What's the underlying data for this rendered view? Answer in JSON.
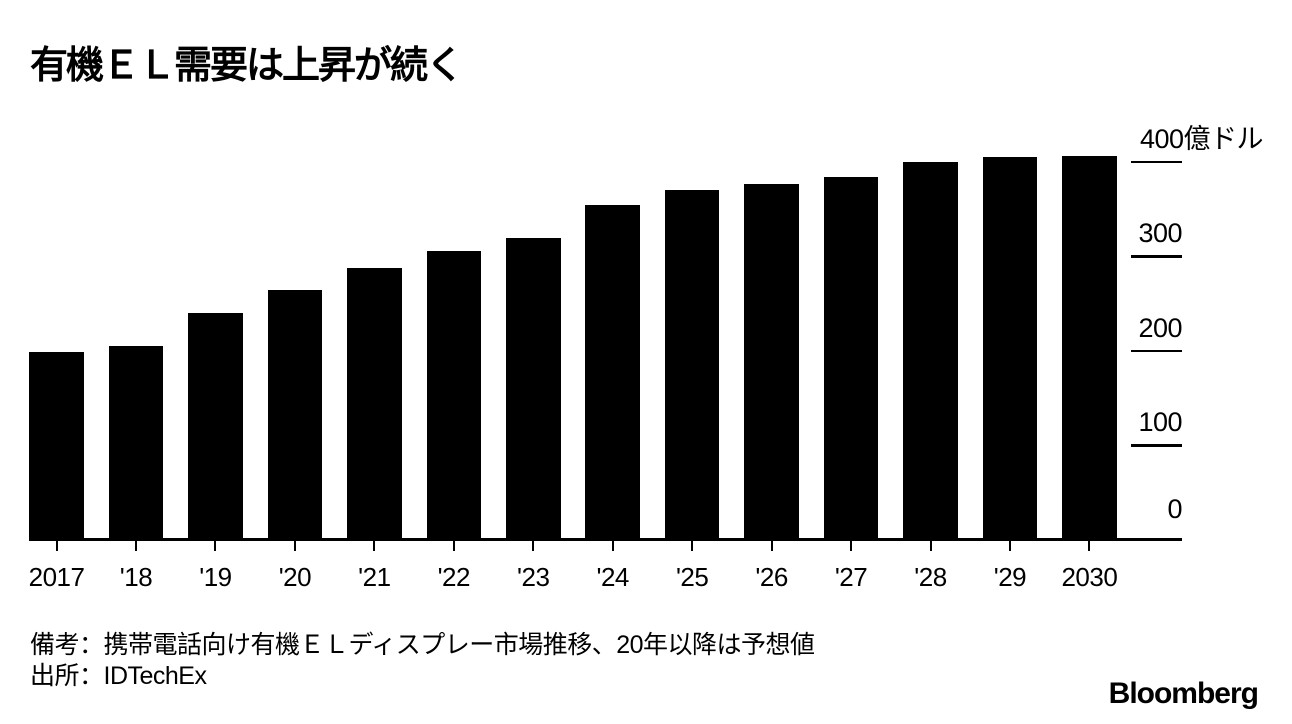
{
  "title": "有機ＥＬ需要は上昇が続く",
  "chart_data": {
    "type": "bar",
    "title": "有機ＥＬ需要は上昇が続く",
    "categories": [
      "2017",
      "'18",
      "'19",
      "'20",
      "'21",
      "'22",
      "'23",
      "'24",
      "'25",
      "'26",
      "'27",
      "'28",
      "'29",
      "2030"
    ],
    "values": [
      199,
      205,
      240,
      265,
      288,
      306,
      320,
      354,
      370,
      377,
      384,
      400,
      405,
      406
    ],
    "unit": "億ドル",
    "xlabel": "",
    "ylabel": "",
    "ylim": [
      0,
      430
    ],
    "grid": false,
    "legend": "none",
    "bar_color": "#000000",
    "y_axis_side": "right",
    "y_ticks": [
      {
        "value": 0,
        "label": "0"
      },
      {
        "value": 100,
        "label": "100"
      },
      {
        "value": 200,
        "label": "200"
      },
      {
        "value": 300,
        "label": "300"
      },
      {
        "value": 400,
        "label": "400億ドル"
      }
    ]
  },
  "footnotes": {
    "note": "備考：携帯電話向け有機ＥＬディスプレー市場推移、20年以降は予想値",
    "source": "出所：IDTechEx"
  },
  "branding": {
    "logo": "Bloomberg"
  }
}
